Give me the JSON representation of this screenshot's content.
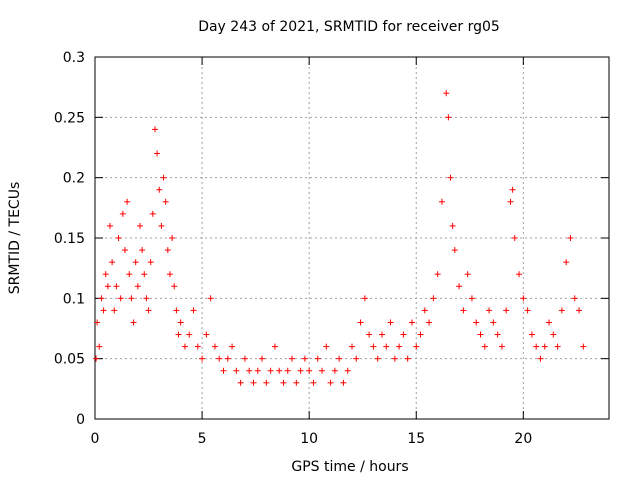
{
  "chart_data": {
    "type": "scatter",
    "title": "Day 243 of 2021, SRMTID for receiver rg05",
    "xlabel": "GPS time / hours",
    "ylabel": "SRMTID / TECUs",
    "xlim": [
      0,
      24
    ],
    "ylim": [
      0,
      0.3
    ],
    "xticks": [
      "0",
      "5",
      "10",
      "15",
      "20"
    ],
    "yticks": [
      "0",
      "0.05",
      "0.1",
      "0.15",
      "0.2",
      "0.25",
      "0.3"
    ],
    "grid": true,
    "marker": "+",
    "series_color": "#ff0000",
    "series": [
      {
        "name": "SRMTID",
        "x": [
          0.05,
          0.1,
          0.2,
          0.3,
          0.4,
          0.5,
          0.6,
          0.7,
          0.8,
          0.9,
          1.0,
          1.1,
          1.2,
          1.3,
          1.4,
          1.5,
          1.6,
          1.7,
          1.8,
          1.9,
          2.0,
          2.1,
          2.2,
          2.3,
          2.4,
          2.5,
          2.6,
          2.7,
          2.8,
          2.9,
          3.0,
          3.1,
          3.2,
          3.3,
          3.4,
          3.5,
          3.6,
          3.7,
          3.8,
          3.9,
          4.0,
          4.2,
          4.4,
          4.6,
          4.8,
          5.0,
          5.2,
          5.4,
          5.6,
          5.8,
          6.0,
          6.2,
          6.4,
          6.6,
          6.8,
          7.0,
          7.2,
          7.4,
          7.6,
          7.8,
          8.0,
          8.2,
          8.4,
          8.6,
          8.8,
          9.0,
          9.2,
          9.4,
          9.6,
          9.8,
          10.0,
          10.2,
          10.4,
          10.6,
          10.8,
          11.0,
          11.2,
          11.4,
          11.6,
          11.8,
          12.0,
          12.2,
          12.4,
          12.6,
          12.8,
          13.0,
          13.2,
          13.4,
          13.6,
          13.8,
          14.0,
          14.2,
          14.4,
          14.6,
          14.8,
          15.0,
          15.2,
          15.4,
          15.6,
          15.8,
          16.0,
          16.2,
          16.4,
          16.5,
          16.6,
          16.7,
          16.8,
          17.0,
          17.2,
          17.4,
          17.6,
          17.8,
          18.0,
          18.2,
          18.4,
          18.6,
          18.8,
          19.0,
          19.2,
          19.4,
          19.5,
          19.6,
          19.8,
          20.0,
          20.2,
          20.4,
          20.6,
          20.8,
          21.0,
          21.2,
          21.4,
          21.6,
          21.8,
          22.0,
          22.2,
          22.4,
          22.6,
          22.8
        ],
        "y": [
          0.05,
          0.08,
          0.06,
          0.1,
          0.09,
          0.12,
          0.11,
          0.16,
          0.13,
          0.09,
          0.11,
          0.15,
          0.1,
          0.17,
          0.14,
          0.18,
          0.12,
          0.1,
          0.08,
          0.13,
          0.11,
          0.16,
          0.14,
          0.12,
          0.1,
          0.09,
          0.13,
          0.17,
          0.24,
          0.22,
          0.19,
          0.16,
          0.2,
          0.18,
          0.14,
          0.12,
          0.15,
          0.11,
          0.09,
          0.07,
          0.08,
          0.06,
          0.07,
          0.09,
          0.06,
          0.05,
          0.07,
          0.1,
          0.06,
          0.05,
          0.04,
          0.05,
          0.06,
          0.04,
          0.03,
          0.05,
          0.04,
          0.03,
          0.04,
          0.05,
          0.03,
          0.04,
          0.06,
          0.04,
          0.03,
          0.04,
          0.05,
          0.03,
          0.04,
          0.05,
          0.04,
          0.03,
          0.05,
          0.04,
          0.06,
          0.03,
          0.04,
          0.05,
          0.03,
          0.04,
          0.06,
          0.05,
          0.08,
          0.1,
          0.07,
          0.06,
          0.05,
          0.07,
          0.06,
          0.08,
          0.05,
          0.06,
          0.07,
          0.05,
          0.08,
          0.06,
          0.07,
          0.09,
          0.08,
          0.1,
          0.12,
          0.18,
          0.27,
          0.25,
          0.2,
          0.16,
          0.14,
          0.11,
          0.09,
          0.12,
          0.1,
          0.08,
          0.07,
          0.06,
          0.09,
          0.08,
          0.07,
          0.06,
          0.09,
          0.18,
          0.19,
          0.15,
          0.12,
          0.1,
          0.09,
          0.07,
          0.06,
          0.05,
          0.06,
          0.08,
          0.07,
          0.06,
          0.09,
          0.13,
          0.15,
          0.1,
          0.09,
          0.06
        ]
      }
    ]
  }
}
